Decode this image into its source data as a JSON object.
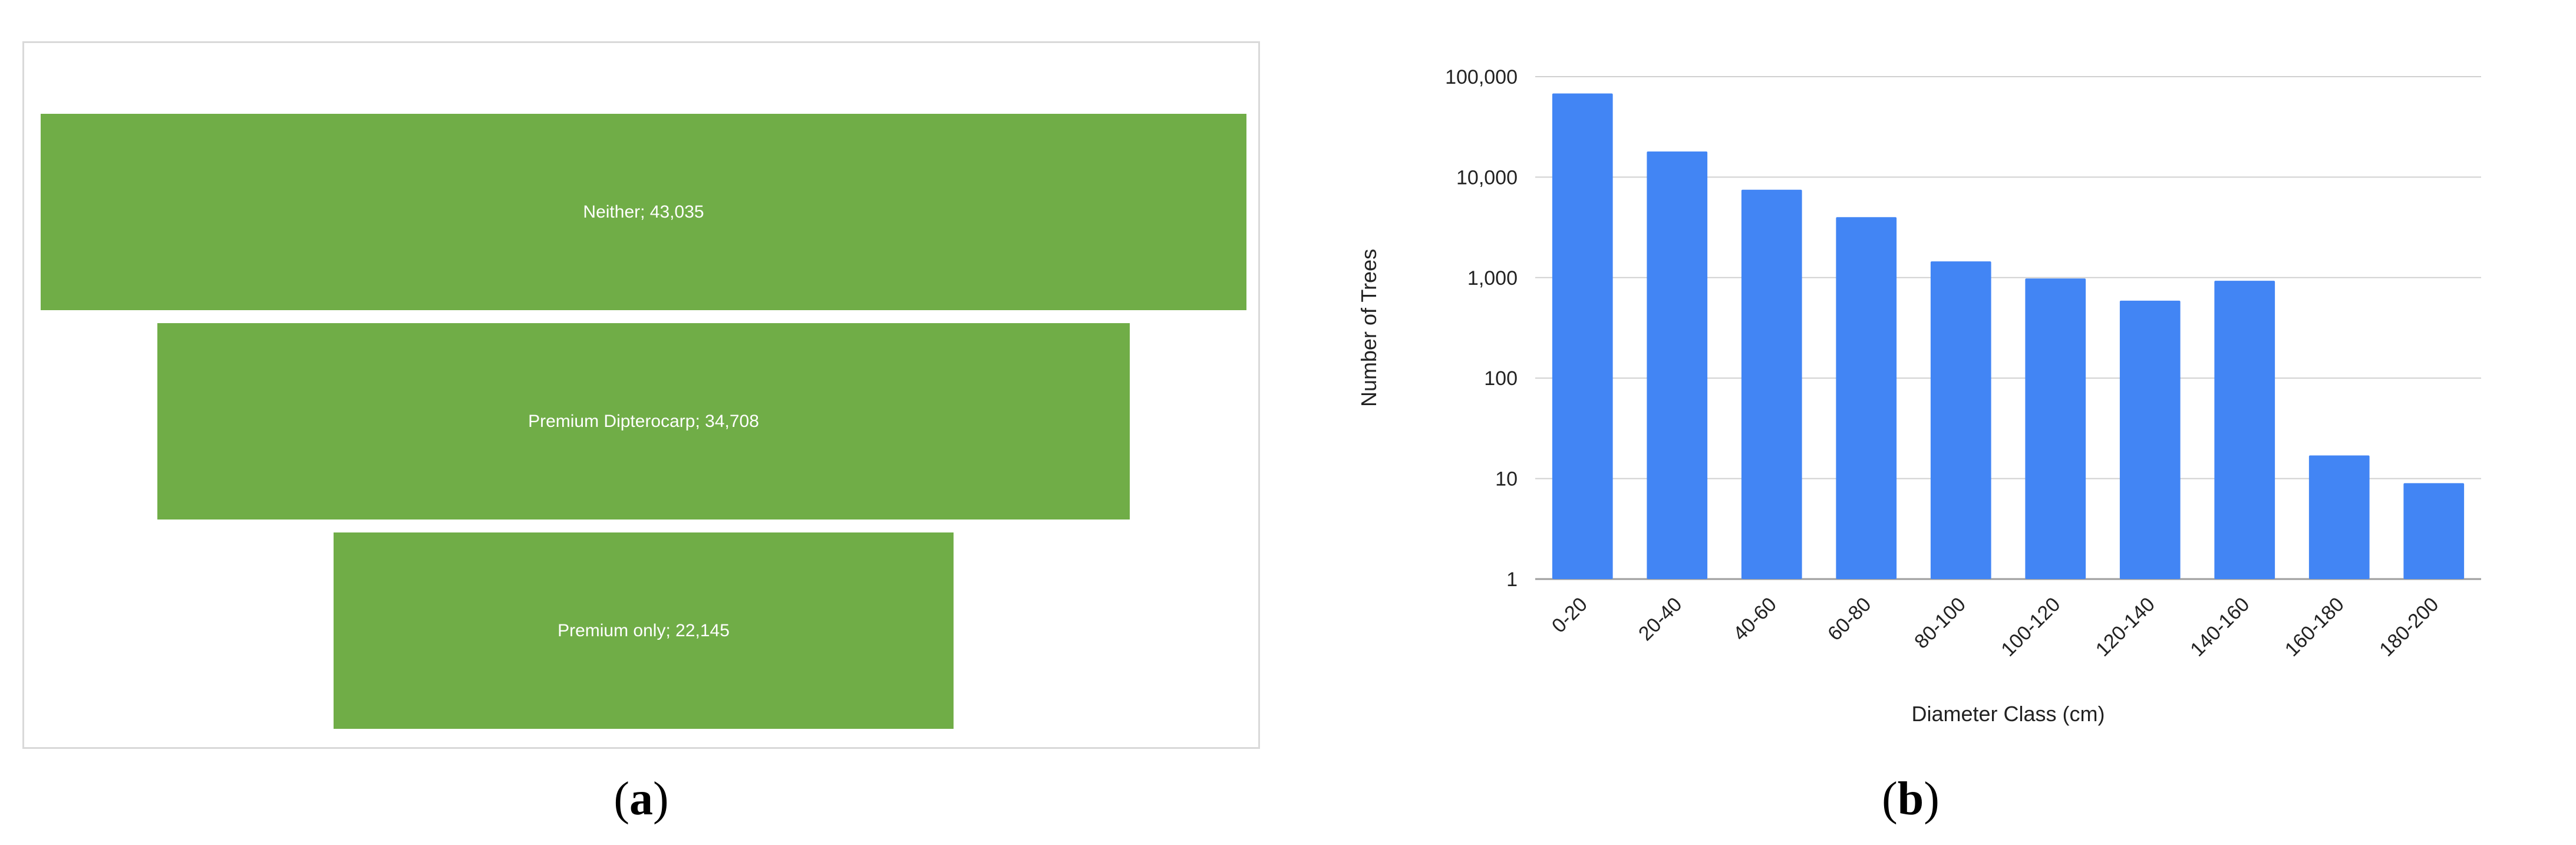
{
  "panels": [
    {
      "caption_letter": "a"
    },
    {
      "caption_letter": "b"
    }
  ],
  "chart_data": [
    {
      "type": "bar",
      "orientation": "funnel",
      "color": "#70ad47",
      "label_color": "#ffffff",
      "categories": [
        "Neither",
        "Premium Dipterocarp",
        "Premium only"
      ],
      "values": [
        43035,
        34708,
        22145
      ],
      "data_labels": [
        "Neither; 43,035",
        "Premium Dipterocarp; 34,708",
        "Premium only; 22,145"
      ]
    },
    {
      "type": "bar",
      "color": "#4285f4",
      "categories": [
        "0-20",
        "20-40",
        "40-60",
        "60-80",
        "80-100",
        "100-120",
        "120-140",
        "140-160",
        "160-180",
        "180-200"
      ],
      "values": [
        68000,
        18000,
        7500,
        4000,
        1450,
        980,
        590,
        930,
        17,
        9
      ],
      "xlabel": "Diameter Class (cm)",
      "ylabel": "Number of Trees",
      "yscale": "log",
      "ylim": [
        1,
        100000
      ],
      "yticks": [
        1,
        10,
        100,
        1000,
        10000,
        100000
      ],
      "ytick_labels": [
        "1",
        "10",
        "100",
        "1,000",
        "10,000",
        "100,000"
      ],
      "grid": true,
      "grid_color": "#d0d0d0"
    }
  ]
}
